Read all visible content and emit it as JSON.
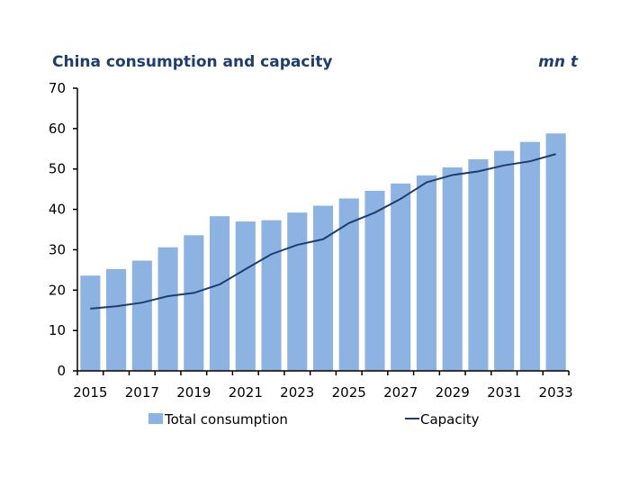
{
  "chart_data": {
    "type": "bar",
    "title": "China consumption and capacity",
    "unit": "mn t",
    "categories": [
      "2015",
      "2016",
      "2017",
      "2018",
      "2019",
      "2020",
      "2021",
      "2022",
      "2023",
      "2024",
      "2025",
      "2026",
      "2027",
      "2028",
      "2029",
      "2030",
      "2031",
      "2032",
      "2033"
    ],
    "tick_labels_x": [
      "2015",
      "2017",
      "2019",
      "2021",
      "2023",
      "2025",
      "2027",
      "2029",
      "2031",
      "2033"
    ],
    "tick_labels_y": [
      "0",
      "10",
      "20",
      "30",
      "40",
      "50",
      "60",
      "70"
    ],
    "ylim": [
      0,
      70
    ],
    "grid": false,
    "legend_placement": "bottom",
    "series": [
      {
        "name": "Total consumption",
        "type": "bar",
        "color": "#8db3e2",
        "values": [
          23.6,
          25.2,
          27.3,
          30.6,
          33.6,
          38.3,
          37.0,
          37.3,
          39.2,
          40.9,
          42.7,
          44.6,
          46.4,
          48.4,
          50.4,
          52.4,
          54.5,
          56.7,
          58.8
        ]
      },
      {
        "name": "Capacity",
        "type": "line",
        "color": "#1f3d6e",
        "values": [
          15.4,
          16.0,
          16.9,
          18.5,
          19.3,
          21.4,
          25.2,
          28.9,
          31.2,
          32.6,
          36.6,
          39.2,
          42.6,
          46.7,
          48.5,
          49.4,
          50.9,
          51.9,
          53.7
        ]
      }
    ]
  }
}
